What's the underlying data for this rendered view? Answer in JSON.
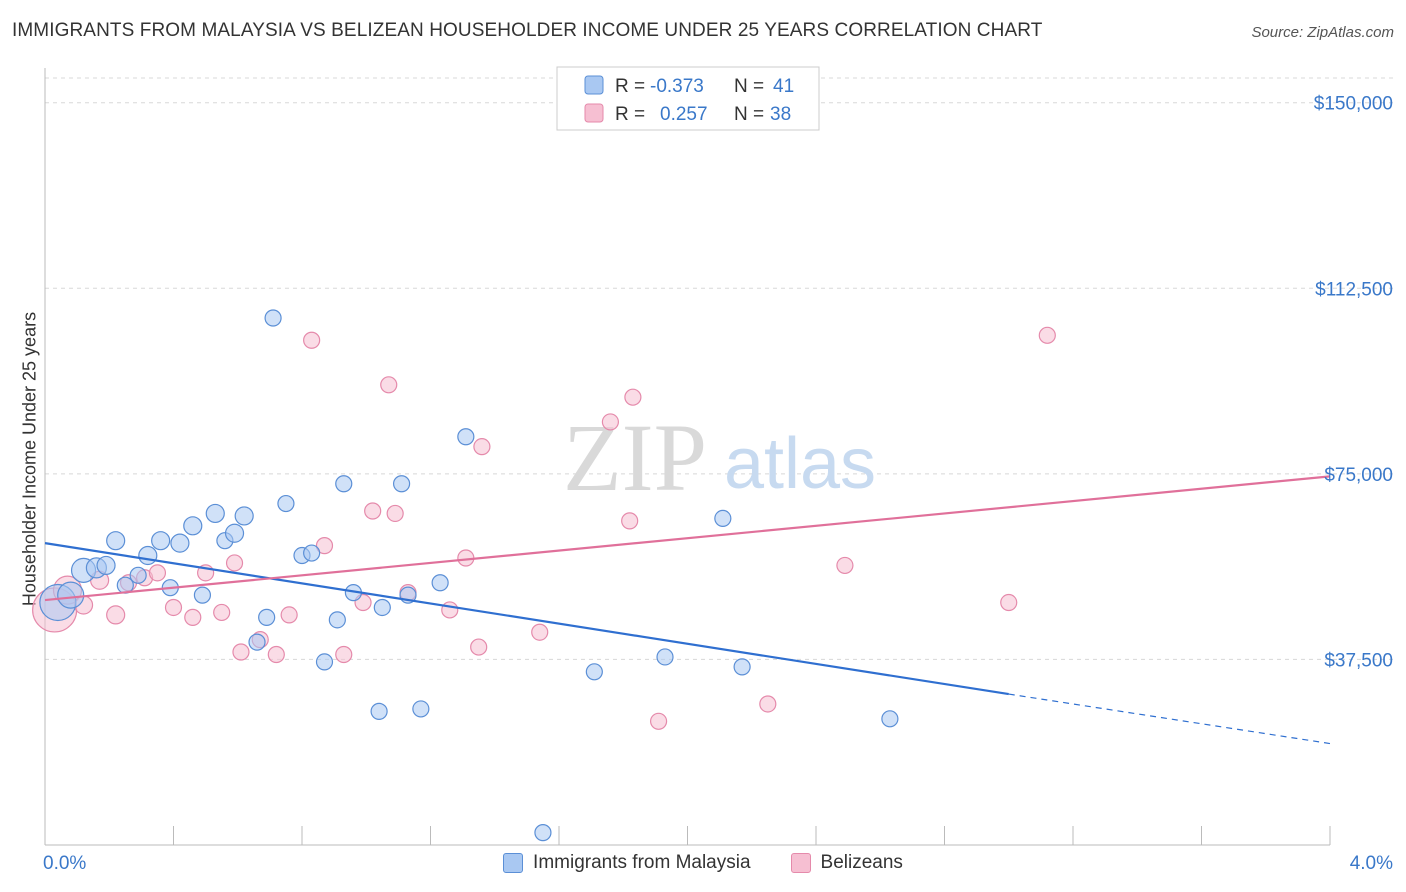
{
  "header": {
    "title": "IMMIGRANTS FROM MALAYSIA VS BELIZEAN HOUSEHOLDER INCOME UNDER 25 YEARS CORRELATION CHART",
    "source": "Source: ZipAtlas.com"
  },
  "watermark": {
    "zip": "ZIP",
    "atlas": "atlas"
  },
  "colors": {
    "blue_fill": "#a9c8f2",
    "blue_stroke": "#5b8fd6",
    "blue_line": "#2f6fd0",
    "pink_fill": "#f6bfd2",
    "pink_stroke": "#e58aab",
    "pink_line": "#e0709a",
    "tick_label": "#3a78c9",
    "grid": "#d8d8d8"
  },
  "stats_legend": [
    {
      "r_label": "R =",
      "r_value": "-0.373",
      "n_label": "N =",
      "n_value": "41",
      "series": "blue"
    },
    {
      "r_label": "R =",
      "r_value": "0.257",
      "n_label": "N =",
      "n_value": "38",
      "series": "pink"
    }
  ],
  "chart_data": {
    "type": "scatter",
    "title": "IMMIGRANTS FROM MALAYSIA VS BELIZEAN HOUSEHOLDER INCOME UNDER 25 YEARS CORRELATION CHART",
    "xlabel": "",
    "ylabel": "Householder Income Under 25 years",
    "xlim": [
      0,
      4
    ],
    "ylim": [
      0,
      155000
    ],
    "x_tick_labels": [
      "0.0%",
      "4.0%"
    ],
    "y_ticks": [
      37500,
      75000,
      112500,
      150000
    ],
    "y_tick_labels": [
      "$37,500",
      "$75,000",
      "$112,500",
      "$150,000"
    ],
    "grid": "horizontal dashed",
    "legend_position": "top-center",
    "series": [
      {
        "name": "Immigrants from Malaysia",
        "color": "blue",
        "r": -0.373,
        "n": 41,
        "trend": {
          "x0": 0,
          "y0": 61000,
          "x1": 3.0,
          "y1": 30500,
          "dashed_to_x": 4.0,
          "dashed_to_y": 20500
        },
        "points": [
          [
            0.04,
            49000,
            18
          ],
          [
            0.08,
            50500,
            13
          ],
          [
            0.12,
            55500,
            12
          ],
          [
            0.16,
            56000,
            10
          ],
          [
            0.19,
            56500,
            9
          ],
          [
            0.22,
            61500,
            9
          ],
          [
            0.25,
            52500,
            8
          ],
          [
            0.29,
            54500,
            8
          ],
          [
            0.32,
            58500,
            9
          ],
          [
            0.36,
            61500,
            9
          ],
          [
            0.39,
            52000,
            8
          ],
          [
            0.42,
            61000,
            9
          ],
          [
            0.46,
            64500,
            9
          ],
          [
            0.49,
            50500,
            8
          ],
          [
            0.53,
            67000,
            9
          ],
          [
            0.56,
            61500,
            8
          ],
          [
            0.59,
            63000,
            9
          ],
          [
            0.62,
            66500,
            9
          ],
          [
            0.66,
            41000,
            8
          ],
          [
            0.69,
            46000,
            8
          ],
          [
            0.71,
            106500,
            8
          ],
          [
            0.75,
            69000,
            8
          ],
          [
            0.8,
            58500,
            8
          ],
          [
            0.83,
            59000,
            8
          ],
          [
            0.87,
            37000,
            8
          ],
          [
            0.91,
            45500,
            8
          ],
          [
            0.93,
            73000,
            8
          ],
          [
            0.96,
            51000,
            8
          ],
          [
            1.04,
            27000,
            8
          ],
          [
            1.05,
            48000,
            8
          ],
          [
            1.11,
            73000,
            8
          ],
          [
            1.17,
            27500,
            8
          ],
          [
            1.13,
            50500,
            8
          ],
          [
            1.23,
            53000,
            8
          ],
          [
            1.31,
            82500,
            8
          ],
          [
            1.55,
            2500,
            8
          ],
          [
            1.71,
            35000,
            8
          ],
          [
            1.93,
            38000,
            8
          ],
          [
            2.11,
            66000,
            8
          ],
          [
            2.17,
            36000,
            8
          ],
          [
            2.63,
            25500,
            8
          ]
        ]
      },
      {
        "name": "Belizeans",
        "color": "pink",
        "r": 0.257,
        "n": 38,
        "trend": {
          "x0": 0,
          "y0": 49500,
          "x1": 4.0,
          "y1": 74500
        },
        "points": [
          [
            0.03,
            47500,
            22
          ],
          [
            0.07,
            51500,
            14
          ],
          [
            0.12,
            48500,
            9
          ],
          [
            0.17,
            53500,
            9
          ],
          [
            0.22,
            46500,
            9
          ],
          [
            0.26,
            53000,
            8
          ],
          [
            0.31,
            54000,
            8
          ],
          [
            0.35,
            55000,
            8
          ],
          [
            0.4,
            48000,
            8
          ],
          [
            0.46,
            46000,
            8
          ],
          [
            0.5,
            55000,
            8
          ],
          [
            0.55,
            47000,
            8
          ],
          [
            0.59,
            57000,
            8
          ],
          [
            0.61,
            39000,
            8
          ],
          [
            0.67,
            41500,
            8
          ],
          [
            0.72,
            38500,
            8
          ],
          [
            0.76,
            46500,
            8
          ],
          [
            0.83,
            102000,
            8
          ],
          [
            0.87,
            60500,
            8
          ],
          [
            0.93,
            38500,
            8
          ],
          [
            0.99,
            49000,
            8
          ],
          [
            1.02,
            67500,
            8
          ],
          [
            1.07,
            93000,
            8
          ],
          [
            1.09,
            67000,
            8
          ],
          [
            1.13,
            51000,
            8
          ],
          [
            1.26,
            47500,
            8
          ],
          [
            1.31,
            58000,
            8
          ],
          [
            1.35,
            40000,
            8
          ],
          [
            1.36,
            80500,
            8
          ],
          [
            1.54,
            43000,
            8
          ],
          [
            1.76,
            85500,
            8
          ],
          [
            1.83,
            90500,
            8
          ],
          [
            1.82,
            65500,
            8
          ],
          [
            1.91,
            25000,
            8
          ],
          [
            2.25,
            28500,
            8
          ],
          [
            2.49,
            56500,
            8
          ],
          [
            3.0,
            49000,
            8
          ],
          [
            3.12,
            103000,
            8
          ]
        ]
      }
    ]
  }
}
